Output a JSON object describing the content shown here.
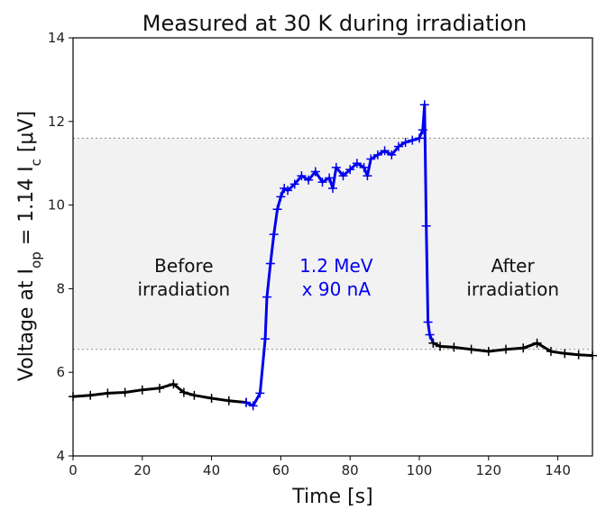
{
  "chart_data": {
    "type": "line",
    "title": "Measured at 30 K during irradiation",
    "xlabel": "Time [s]",
    "ylabel_parts": {
      "pre": "Voltage at I",
      "sub1": "op",
      "mid": " = 1.14 I",
      "sub2": "c",
      "post": " [μV]"
    },
    "xlim": [
      0,
      150
    ],
    "ylim": [
      4,
      14
    ],
    "x_ticks": [
      0,
      20,
      40,
      60,
      80,
      100,
      120,
      140
    ],
    "y_ticks": [
      4,
      6,
      8,
      10,
      12,
      14
    ],
    "band": {
      "y_low": 6.55,
      "y_high": 11.6,
      "color": "#f2f2f2",
      "line_color": "#999999"
    },
    "series": [
      {
        "color": "#000000",
        "x": [
          0,
          5,
          10,
          15,
          20,
          25,
          29,
          32,
          35,
          40,
          45,
          50
        ],
        "y": [
          5.42,
          5.45,
          5.5,
          5.52,
          5.58,
          5.62,
          5.72,
          5.52,
          5.45,
          5.38,
          5.32,
          5.28
        ]
      },
      {
        "color": "#0000ee",
        "x": [
          50,
          52,
          54,
          55.5,
          56,
          57,
          58,
          59,
          60,
          61,
          62,
          64,
          66,
          68,
          70,
          72,
          74,
          75,
          76,
          78,
          80,
          82,
          84,
          85,
          86,
          88,
          90,
          92,
          94,
          96,
          98,
          100,
          101,
          101.5,
          102,
          102.5,
          103,
          104
        ],
        "y": [
          5.28,
          5.2,
          5.5,
          6.8,
          7.8,
          8.6,
          9.3,
          9.9,
          10.2,
          10.4,
          10.35,
          10.5,
          10.7,
          10.6,
          10.8,
          10.55,
          10.65,
          10.4,
          10.9,
          10.7,
          10.85,
          11.0,
          10.9,
          10.7,
          11.1,
          11.2,
          11.3,
          11.2,
          11.4,
          11.5,
          11.55,
          11.6,
          11.8,
          12.4,
          9.5,
          7.2,
          6.9,
          6.7
        ]
      },
      {
        "color": "#000000",
        "x": [
          104,
          106,
          110,
          115,
          120,
          125,
          130,
          134,
          138,
          142,
          146,
          150
        ],
        "y": [
          6.7,
          6.62,
          6.6,
          6.55,
          6.5,
          6.55,
          6.58,
          6.7,
          6.5,
          6.45,
          6.42,
          6.4
        ]
      }
    ],
    "annotations": [
      {
        "lines": [
          "Before",
          "irradiation"
        ],
        "x": 32,
        "y": 8.4,
        "color": "#111111"
      },
      {
        "lines": [
          "1.2 MeV",
          "x 90 nA"
        ],
        "x": 76,
        "y": 8.4,
        "color": "#0000ee"
      },
      {
        "lines": [
          "After",
          "irradiation"
        ],
        "x": 127,
        "y": 8.4,
        "color": "#111111"
      }
    ]
  }
}
